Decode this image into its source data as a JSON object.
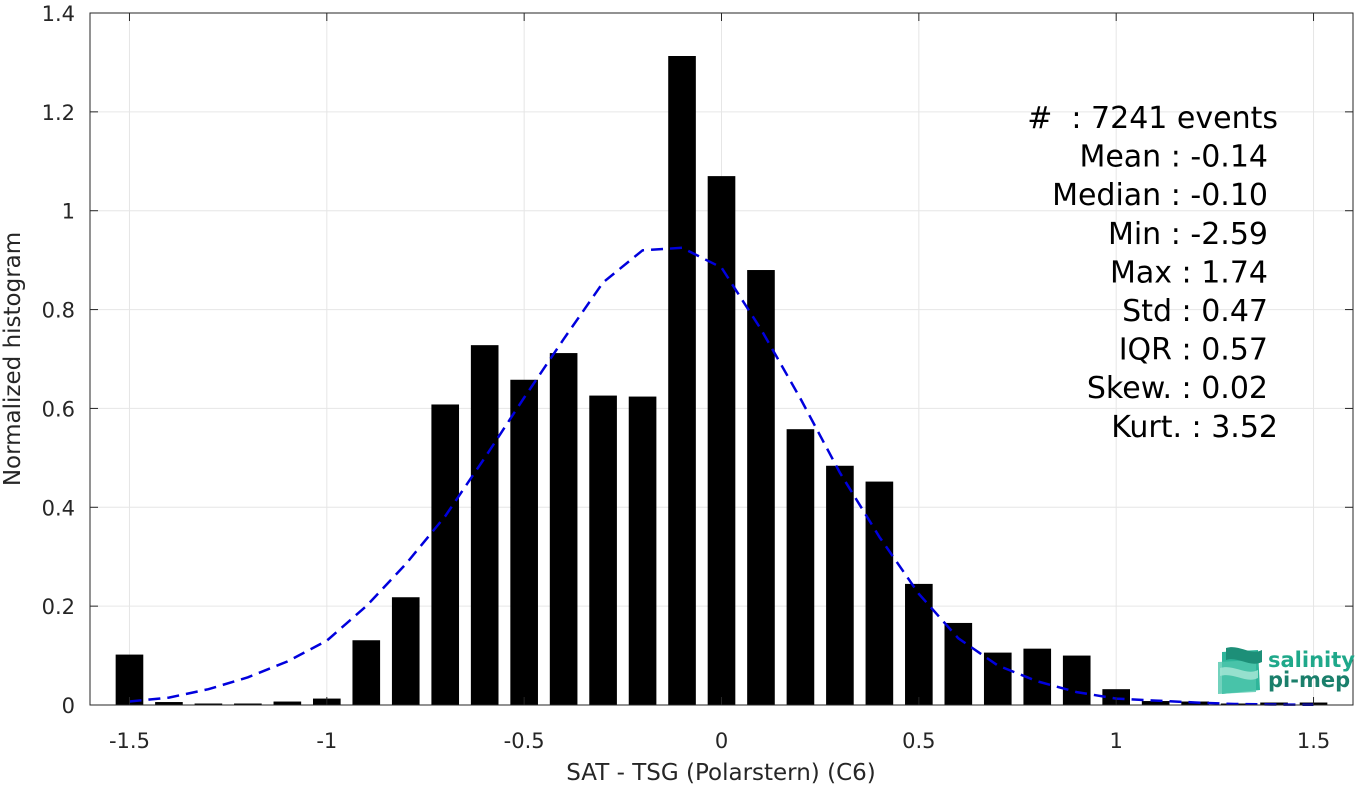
{
  "chart_data": {
    "type": "bar",
    "xlabel": "SAT - TSG (Polarstern) (C6)",
    "ylabel": "Normalized histogram",
    "xlim": [
      -1.6,
      1.6
    ],
    "ylim": [
      0,
      1.4
    ],
    "xticks": [
      -1.5,
      -1,
      -0.5,
      0,
      0.5,
      1,
      1.5
    ],
    "xtick_labels": [
      "-1.5",
      "-1",
      "-0.5",
      "0",
      "0.5",
      "1",
      "1.5"
    ],
    "yticks": [
      0,
      0.2,
      0.4,
      0.6,
      0.8,
      1,
      1.2,
      1.4
    ],
    "ytick_labels": [
      "0",
      "0.2",
      "0.4",
      "0.6",
      "0.8",
      "1",
      "1.2",
      "1.4"
    ],
    "grid": true,
    "bar_color": "#000000",
    "bin_width": 0.1,
    "bins": [
      -1.5,
      -1.4,
      -1.3,
      -1.2,
      -1.1,
      -1.0,
      -0.9,
      -0.8,
      -0.7,
      -0.6,
      -0.5,
      -0.4,
      -0.3,
      -0.2,
      -0.1,
      0.0,
      0.1,
      0.2,
      0.3,
      0.4,
      0.5,
      0.6,
      0.7,
      0.8,
      0.9,
      1.0,
      1.1,
      1.2,
      1.3,
      1.4,
      1.5
    ],
    "values": [
      0.102,
      0.006,
      0.003,
      0.003,
      0.007,
      0.013,
      0.131,
      0.218,
      0.608,
      0.728,
      0.658,
      0.712,
      0.626,
      0.624,
      1.313,
      1.07,
      0.88,
      0.558,
      0.484,
      0.452,
      0.245,
      0.166,
      0.106,
      0.114,
      0.1,
      0.032,
      0.008,
      0.007,
      0.003,
      0.005,
      0.005
    ],
    "fit_curve": {
      "style": "dashed",
      "color": "#0000dd",
      "x": [
        -1.5,
        -1.4,
        -1.3,
        -1.2,
        -1.1,
        -1.0,
        -0.9,
        -0.8,
        -0.7,
        -0.6,
        -0.5,
        -0.4,
        -0.3,
        -0.2,
        -0.1,
        0.0,
        0.1,
        0.2,
        0.3,
        0.4,
        0.5,
        0.6,
        0.7,
        0.8,
        0.9,
        1.0,
        1.1,
        1.2,
        1.3,
        1.4,
        1.5
      ],
      "y": [
        0.007,
        0.015,
        0.032,
        0.056,
        0.088,
        0.13,
        0.2,
        0.285,
        0.382,
        0.5,
        0.622,
        0.74,
        0.855,
        0.92,
        0.925,
        0.885,
        0.76,
        0.62,
        0.47,
        0.34,
        0.225,
        0.135,
        0.08,
        0.048,
        0.026,
        0.013,
        0.009,
        0.005,
        0.002,
        0.001,
        0.0005
      ]
    },
    "annotations": [
      "#  : 7241 events",
      "Mean : -0.14",
      "Median : -0.10",
      "Min : -2.59",
      "Max : 1.74",
      "Std : 0.47",
      "IQR : 0.57",
      "Skew. : 0.02",
      "Kurt. : 3.52"
    ]
  },
  "logo": {
    "line1": "salinity",
    "line2": "pi-mep"
  }
}
